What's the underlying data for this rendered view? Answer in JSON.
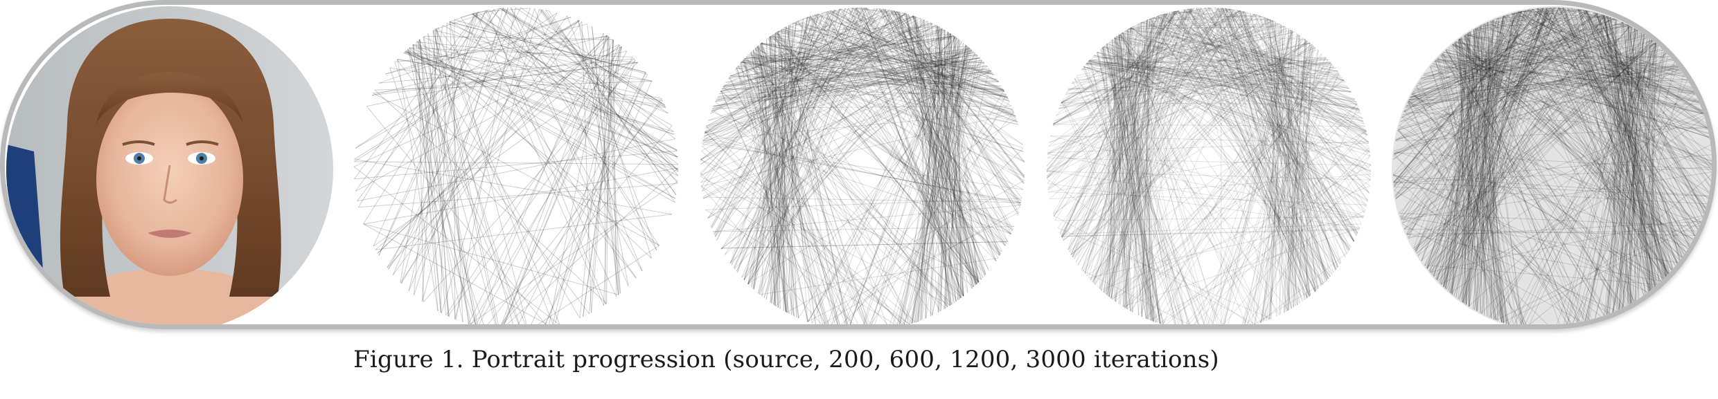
{
  "figure": {
    "caption": "Figure 1. Portrait progression (source, 200, 600, 1200, 3000 iterations)",
    "panels": [
      {
        "name": "source-portrait",
        "iterations": null
      },
      {
        "name": "string-art-200",
        "iterations": 200
      },
      {
        "name": "string-art-600",
        "iterations": 600
      },
      {
        "name": "string-art-1200",
        "iterations": 1200
      },
      {
        "name": "string-art-3000",
        "iterations": 3000
      }
    ]
  },
  "colors": {
    "frame": "#b9b9b9",
    "photo_background": "#c9cdd0",
    "hair": "#7a5134",
    "skin": "#ecc2ab",
    "thread": "#222222",
    "caption_text": "#1a1a1a"
  }
}
